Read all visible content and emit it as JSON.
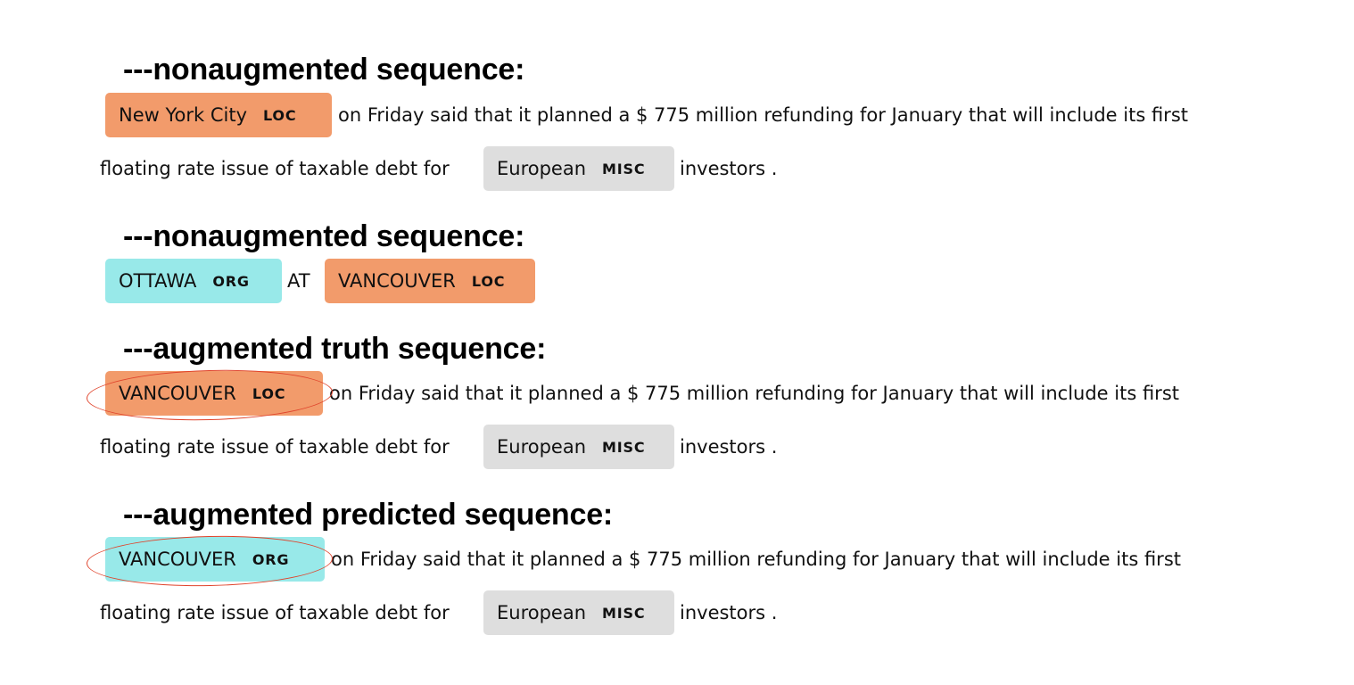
{
  "sections": [
    {
      "heading": "---nonaugmented sequence:",
      "lines": [
        {
          "entity": {
            "text": "New York City",
            "label": "LOC"
          },
          "text": "on Friday said that it planned a $ 775 million refunding for January that will include its first"
        },
        {
          "text": "floating rate issue of taxable debt for",
          "entity": {
            "text": "European",
            "label": "MISC"
          },
          "tail": "investors ."
        }
      ]
    },
    {
      "heading": "---nonaugmented sequence:",
      "line": {
        "entity1": {
          "text": "OTTAWA",
          "label": "ORG"
        },
        "middle": "AT",
        "entity2": {
          "text": "VANCOUVER",
          "label": "LOC"
        }
      }
    },
    {
      "heading": "---augmented truth sequence:",
      "lines": [
        {
          "entity": {
            "text": "VANCOUVER",
            "label": "LOC"
          },
          "text": "on Friday said that it planned a $ 775 million refunding for January that will include its first"
        },
        {
          "text": "floating rate issue of taxable debt for",
          "entity": {
            "text": "European",
            "label": "MISC"
          },
          "tail": "investors ."
        }
      ]
    },
    {
      "heading": "---augmented predicted sequence:",
      "lines": [
        {
          "entity": {
            "text": "VANCOUVER",
            "label": "ORG"
          },
          "text": "on Friday said that it planned a $ 775 million refunding for January that will include its first"
        },
        {
          "text": "floating rate issue of taxable debt for",
          "entity": {
            "text": "European",
            "label": "MISC"
          },
          "tail": "investors ."
        }
      ]
    }
  ],
  "colors": {
    "loc": "#f29b6b",
    "org": "#98e9e9",
    "misc": "#dedede",
    "highlight_ellipse": "#e0442c"
  }
}
